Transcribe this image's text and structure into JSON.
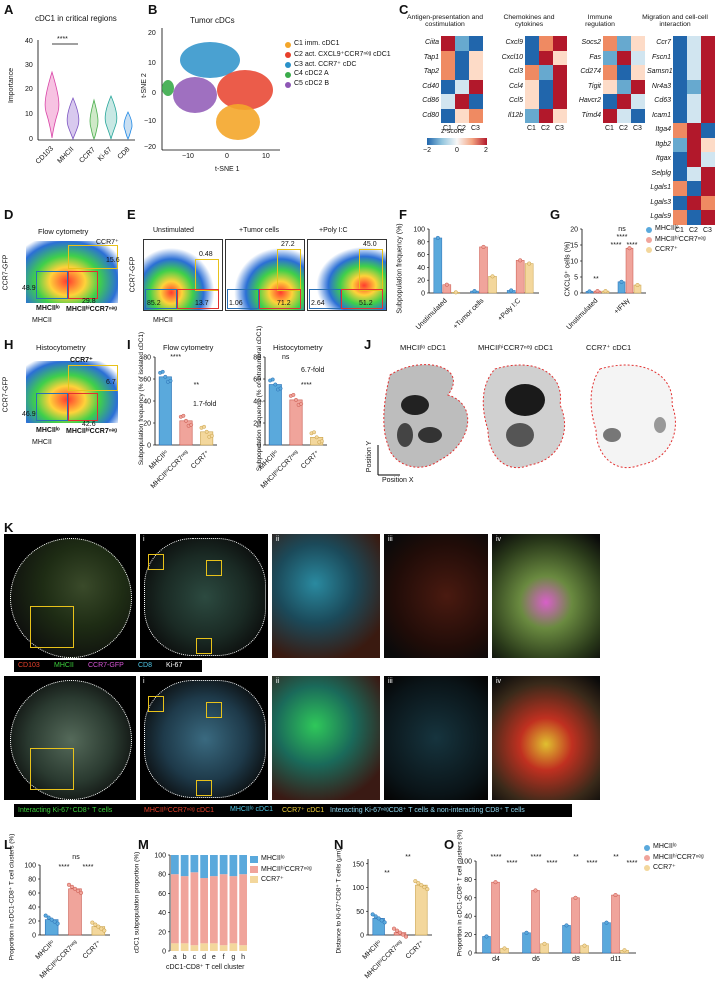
{
  "figure": {
    "panels": [
      "A",
      "B",
      "C",
      "D",
      "E",
      "F",
      "G",
      "H",
      "I",
      "J",
      "K",
      "L",
      "M",
      "N",
      "O"
    ]
  },
  "colors": {
    "lo": "#5aa9dc",
    "hi": "#f0a49b",
    "ccr7": "#f3d79c",
    "c1": "#f4a62a",
    "c2": "#e8402a",
    "c3": "#2a91c9",
    "c4": "#3aab4a",
    "c5": "#8e57b5",
    "box_yellow": "#e8c21a",
    "box_red": "#e23030",
    "box_blue": "#2a6fb5"
  },
  "panelA": {
    "title": "cDC1 in critical regions",
    "ylabel": "Importance",
    "sig": "****",
    "categories": [
      "CD103",
      "MHCII",
      "CCR7",
      "Ki-67",
      "CD8"
    ],
    "yticks": [
      "0",
      "10",
      "20",
      "30",
      "40"
    ]
  },
  "panelB": {
    "title": "Tumor cDCs",
    "xlabel": "t-SNE 1",
    "ylabel": "t-SNE 2",
    "xticks": [
      "−10",
      "0",
      "10"
    ],
    "yticks": [
      "20",
      "10",
      "0",
      "−10",
      "−20"
    ],
    "legend": [
      "C1 imm. cDC1",
      "C2 act. CXCL9⁺CCR7ⁿᵉᵍ cDC1",
      "C3 act. CCR7⁺ cDC",
      "C4 cDC2 A",
      "C5 cDC2 B"
    ]
  },
  "panelC": {
    "groups": [
      {
        "title": "Antigen-presentation and costimulation",
        "genes": [
          "Ciita",
          "Tap1",
          "Tap2",
          "Cd40",
          "Cd86",
          "Cd80"
        ]
      },
      {
        "title": "Chemokines and cytokines",
        "genes": [
          "Cxcl9",
          "Cxcl10",
          "Ccl3",
          "Ccl4",
          "Ccl5",
          "Il12b"
        ]
      },
      {
        "title": "Immune regulation",
        "genes": [
          "Socs2",
          "Fas",
          "Cd274",
          "Tigit",
          "Havcr2",
          "Timd4"
        ]
      },
      {
        "title": "Migration and cell-cell interaction",
        "genes": [
          "Ccr7",
          "Fscn1",
          "Samsn1",
          "Nr4a3",
          "Cd63",
          "Icam1",
          "Itga4",
          "Itgb2",
          "Itgax",
          "Selplg",
          "Lgals1",
          "Lgals3",
          "Lgals9"
        ]
      }
    ],
    "cols": [
      "C1",
      "C2",
      "C3"
    ],
    "zscore_label": "z-score",
    "zticks": [
      "−2",
      "0",
      "2"
    ]
  },
  "panelD": {
    "title": "Flow cytometry",
    "ylabel": "CCR7-GFP",
    "xlabel": "MHCII",
    "gates": {
      "ccr7": "CCR7⁺",
      "lo": "MHCIIˡᵒ",
      "hi": "MHCIIʰⁱCCR7ⁿᵉᵍ"
    },
    "values": {
      "ccr7": "15.6",
      "lo": "48.9",
      "hi": "29.8"
    }
  },
  "panelE": {
    "ylabel": "CCR7-GFP",
    "xlabel": "MHCII",
    "plots": [
      {
        "title": "Unstimulated",
        "top": "0.48",
        "bl": "85.2",
        "br": "13.7"
      },
      {
        "title": "+Tumor cells",
        "top": "27.2",
        "bl": "1.06",
        "br": "71.2"
      },
      {
        "title": "+Poly I:C",
        "top": "45.0",
        "bl": "2.64",
        "br": "51.2"
      }
    ]
  },
  "panelF": {
    "ylabel": "Subpopulation frequency (%)",
    "yticks": [
      "0",
      "20",
      "40",
      "60",
      "80",
      "100"
    ],
    "groups": [
      "Unstimulated",
      "+Tumor cells",
      "+Poly I:C"
    ]
  },
  "panelG": {
    "ylabel": "CXCL9⁺ cells (%)",
    "yticks": [
      "0",
      "5",
      "10",
      "15",
      "20"
    ],
    "groups": [
      "Unstimulated",
      "+IFNγ"
    ],
    "sig": [
      "**",
      "ns",
      "****",
      "****",
      "****"
    ],
    "legend": [
      "MHCIIˡᵒ",
      "MHCIIʰⁱCCR7ⁿᵉᵍ",
      "CCR7⁺"
    ]
  },
  "panelH": {
    "title": "Histocytometry",
    "ylabel": "CCR7-GFP",
    "xlabel": "MHCII",
    "gates": {
      "ccr7": "CCR7⁺",
      "lo": "MHCIIˡᵒ",
      "hi": "MHCIIʰⁱCCR7ⁿᵉᵍ"
    },
    "values": {
      "ccr7": "6.7",
      "lo": "46.9",
      "hi": "42.6"
    }
  },
  "panelI": {
    "left_title": "Flow cytometry",
    "right_title": "Histocytometry",
    "left_ylabel": "Subpopulation frequency (% of isolated cDC1)",
    "right_ylabel": "Subpopulation frequency (% of intratumoral cDC1)",
    "yticks": [
      "0",
      "20",
      "40",
      "60",
      "80"
    ],
    "cats": [
      "MHCIIˡᵒ",
      "MHCIIʰⁱCCR7ⁿᵉᵍ",
      "CCR7⁺"
    ],
    "left_sig": [
      "****",
      "**"
    ],
    "left_fold": "1.7-fold",
    "right_sig": [
      "ns",
      "****"
    ],
    "right_fold": "6.7-fold"
  },
  "panelJ": {
    "titles": [
      "MHCIIˡᵒ cDC1",
      "MHCIIʰⁱCCR7ⁿᵉᵍ cDC1",
      "CCR7⁺ cDC1"
    ],
    "ylabel": "Position Y",
    "xlabel": "Position X"
  },
  "panelK": {
    "roman": [
      "i",
      "ii",
      "iii",
      "iv"
    ],
    "legend_top": [
      {
        "text": "CD103",
        "color": "#e8402a"
      },
      {
        "text": "MHCII",
        "color": "#3ccf3c"
      },
      {
        "text": "CCR7-GFP",
        "color": "#d855d8"
      },
      {
        "text": "CD8",
        "color": "#4fc8e8"
      },
      {
        "text": "Ki-67",
        "color": "#ffffff"
      }
    ],
    "legend_bottom": [
      {
        "text": "Interacting Ki-67⁺CD8⁺ T cells",
        "color": "#3ccf3c"
      },
      {
        "text": "MHCIIʰⁱCCR7ⁿᵉᵍ cDC1",
        "color": "#e8402a"
      },
      {
        "text": "MHCIIˡᵒ cDC1",
        "color": "#4fc8e8"
      },
      {
        "text": "CCR7⁺ cDC1",
        "color": "#f3d23a"
      },
      {
        "text": "Interacting Ki-67ⁿᵉᵍCD8⁺ T cells & non-interacting CD8⁺ T cells",
        "color": "#8fd6f0"
      }
    ]
  },
  "panelL": {
    "ylabel": "Proportion in cDC1-CD8⁺ T cell clusters (%)",
    "yticks": [
      "0",
      "20",
      "40",
      "60",
      "80",
      "100"
    ],
    "cats": [
      "MHCIIˡᵒ",
      "MHCIIʰⁱCCR7ⁿᵉᵍ",
      "CCR7⁺"
    ],
    "sig": [
      "ns",
      "****",
      "****"
    ]
  },
  "panelM": {
    "ylabel": "cDC1 subpopulation proportion (%)",
    "xlabel": "cDC1-CD8⁺ T cell cluster",
    "yticks": [
      "0",
      "20",
      "40",
      "60",
      "80",
      "100"
    ],
    "cats": [
      "a",
      "b",
      "c",
      "d",
      "e",
      "f",
      "g",
      "h"
    ],
    "legend": [
      "MHCIIˡᵒ",
      "MHCIIʰⁱCCR7ⁿᵉᵍ",
      "CCR7⁺"
    ]
  },
  "panelN": {
    "ylabel": "Distance to Ki-67⁺CD8⁺ T cells (μm)",
    "yticks": [
      "0",
      "50",
      "100",
      "150"
    ],
    "cats": [
      "MHCIIˡᵒ",
      "MHCIIʰⁱCCR7ⁿᵉᵍ",
      "CCR7⁺"
    ],
    "sig": [
      "**",
      "**"
    ]
  },
  "panelO": {
    "ylabel": "Proportion in cDC1-CD8⁺ T cell clusters (%)",
    "yticks": [
      "0",
      "20",
      "40",
      "60",
      "80",
      "100"
    ],
    "groups": [
      "d4",
      "d6",
      "d8",
      "d11"
    ],
    "sig": [
      "****",
      "****",
      "****",
      "****",
      "**",
      "****",
      "**",
      "****"
    ],
    "legend": [
      "MHCIIˡᵒ",
      "MHCIIʰⁱCCR7ⁿᵉᵍ",
      "CCR7⁺"
    ]
  },
  "chart_data": [
    {
      "panel": "F",
      "type": "bar",
      "categories": [
        "Unstimulated",
        "+Tumor cells",
        "+Poly I:C"
      ],
      "series": [
        {
          "name": "MHCIIˡᵒ",
          "values": [
            86,
            3,
            4
          ]
        },
        {
          "name": "MHCIIʰⁱCCR7ⁿᵉᵍ",
          "values": [
            13,
            72,
            51
          ]
        },
        {
          "name": "CCR7⁺",
          "values": [
            1,
            26,
            46
          ]
        }
      ],
      "ylabel": "Subpopulation frequency (%)",
      "ylim": [
        0,
        100
      ]
    },
    {
      "panel": "G",
      "type": "bar",
      "categories": [
        "Unstimulated",
        "+IFNγ"
      ],
      "series": [
        {
          "name": "MHCIIˡᵒ",
          "values": [
            0.5,
            3.5
          ]
        },
        {
          "name": "MHCIIʰⁱCCR7ⁿᵉᵍ",
          "values": [
            0.6,
            14
          ]
        },
        {
          "name": "CCR7⁺",
          "values": [
            0.6,
            2.5
          ]
        }
      ],
      "ylabel": "CXCL9⁺ cells (%)",
      "ylim": [
        0,
        20
      ]
    },
    {
      "panel": "I-left",
      "type": "bar",
      "categories": [
        "MHCIIˡᵒ",
        "MHCIIʰⁱCCR7ⁿᵉᵍ",
        "CCR7⁺"
      ],
      "values": [
        62,
        22,
        12
      ],
      "ylim": [
        0,
        80
      ]
    },
    {
      "panel": "I-right",
      "type": "bar",
      "categories": [
        "MHCIIˡᵒ",
        "MHCIIʰⁱCCR7ⁿᵉᵍ",
        "CCR7⁺"
      ],
      "values": [
        55,
        41,
        7
      ],
      "ylim": [
        0,
        80
      ]
    },
    {
      "panel": "L",
      "type": "bar",
      "categories": [
        "MHCIIˡᵒ",
        "MHCIIʰⁱCCR7ⁿᵉᵍ",
        "CCR7⁺"
      ],
      "values": [
        22,
        66,
        12
      ],
      "ylim": [
        0,
        100
      ]
    },
    {
      "panel": "M",
      "type": "bar",
      "categories": [
        "a",
        "b",
        "c",
        "d",
        "e",
        "f",
        "g",
        "h"
      ],
      "series": [
        {
          "name": "MHCIIˡᵒ",
          "values": [
            20,
            22,
            18,
            24,
            22,
            20,
            22,
            20
          ]
        },
        {
          "name": "MHCIIʰⁱCCR7ⁿᵉᵍ",
          "values": [
            72,
            70,
            76,
            68,
            70,
            74,
            70,
            74
          ]
        },
        {
          "name": "CCR7⁺",
          "values": [
            8,
            8,
            6,
            8,
            8,
            6,
            8,
            6
          ]
        }
      ],
      "ylim": [
        0,
        100
      ]
    },
    {
      "panel": "N",
      "type": "bar",
      "categories": [
        "MHCIIˡᵒ",
        "MHCIIʰⁱCCR7ⁿᵉᵍ",
        "CCR7⁺"
      ],
      "values": [
        35,
        5,
        105
      ],
      "ylim": [
        0,
        160
      ]
    },
    {
      "panel": "O",
      "type": "bar",
      "categories": [
        "d4",
        "d6",
        "d8",
        "d11"
      ],
      "series": [
        {
          "name": "MHCIIˡᵒ",
          "values": [
            18,
            22,
            30,
            33
          ]
        },
        {
          "name": "MHCIIʰⁱCCR7ⁿᵉᵍ",
          "values": [
            77,
            68,
            60,
            63
          ]
        },
        {
          "name": "CCR7⁺",
          "values": [
            5,
            10,
            8,
            3
          ]
        }
      ],
      "ylim": [
        0,
        100
      ]
    }
  ]
}
